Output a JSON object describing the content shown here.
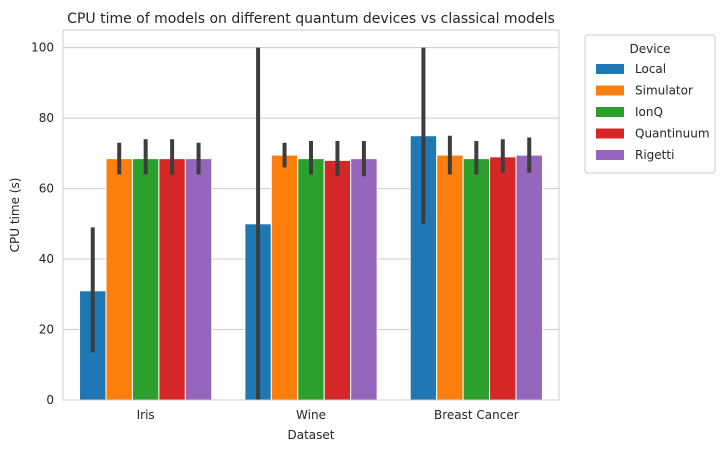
{
  "chart_data": {
    "type": "bar",
    "title": "CPU time of models on different quantum devices vs classical models",
    "xlabel": "Dataset",
    "ylabel": "CPU time (s)",
    "ylim": [
      0,
      105
    ],
    "yticks": [
      0,
      20,
      40,
      60,
      80,
      100
    ],
    "grid": "horizontal",
    "legend_title": "Device",
    "legend_position": "outside-right",
    "categories": [
      "Iris",
      "Wine",
      "Breast Cancer"
    ],
    "series": [
      {
        "name": "Local",
        "color": "#1f77b4",
        "values": [
          31,
          50,
          75
        ],
        "ci_low": [
          13.5,
          0,
          50
        ],
        "ci_high": [
          49,
          100,
          100
        ]
      },
      {
        "name": "Simulator",
        "color": "#ff7f0e",
        "values": [
          68.5,
          69.5,
          69.5
        ],
        "ci_low": [
          64,
          66,
          64
        ],
        "ci_high": [
          73,
          73,
          75
        ]
      },
      {
        "name": "IonQ",
        "color": "#2ca02c",
        "values": [
          68.5,
          68.5,
          68.5
        ],
        "ci_low": [
          64,
          64,
          64
        ],
        "ci_high": [
          74,
          73.5,
          73.5
        ]
      },
      {
        "name": "Quantinuum",
        "color": "#d62728",
        "values": [
          68.5,
          68,
          69
        ],
        "ci_low": [
          64,
          63.5,
          64.5
        ],
        "ci_high": [
          74,
          73.5,
          74
        ]
      },
      {
        "name": "Rigetti",
        "color": "#9467bd",
        "values": [
          68.5,
          68.5,
          69.5
        ],
        "ci_low": [
          64,
          63.5,
          64.5
        ],
        "ci_high": [
          73,
          73.5,
          74.5
        ]
      }
    ]
  }
}
